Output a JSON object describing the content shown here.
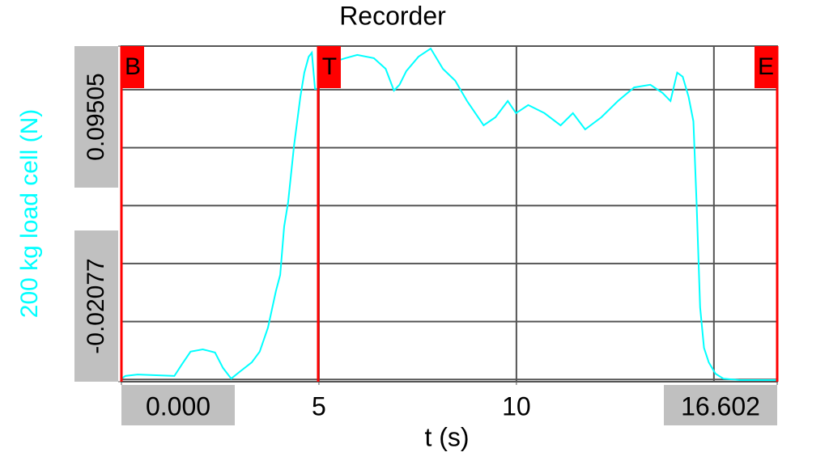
{
  "chart_data": {
    "type": "line",
    "title": "Recorder",
    "xlabel": "t (s)",
    "ylabel": "200 kg load cell (N)",
    "x": [
      0,
      0.1,
      0.41,
      1.34,
      1.54,
      1.75,
      2.06,
      2.37,
      2.57,
      2.78,
      2.99,
      3.3,
      3.5,
      3.71,
      3.91,
      4.02,
      4.12,
      4.22,
      4.37,
      4.53,
      4.63,
      4.74,
      4.82,
      4.9,
      4.98,
      5.07,
      5.25,
      5.46,
      5.67,
      5.97,
      6.39,
      6.69,
      6.9,
      7.04,
      7.21,
      7.52,
      7.83,
      8.14,
      8.45,
      8.75,
      9.17,
      9.47,
      9.78,
      9.99,
      10.3,
      10.71,
      11.12,
      11.43,
      11.74,
      12.15,
      12.57,
      12.98,
      13.39,
      13.7,
      13.9,
      14.07,
      14.21,
      14.36,
      14.48,
      14.56,
      14.65,
      14.75,
      14.87,
      15.04,
      15.24,
      15.65,
      16.6
    ],
    "values": [
      -0.0197,
      -0.0188,
      -0.0183,
      -0.0188,
      -0.0146,
      -0.0104,
      -0.0096,
      -0.0107,
      -0.016,
      -0.0197,
      -0.0174,
      -0.0141,
      -0.0104,
      -0.0021,
      0.0105,
      0.0161,
      0.0328,
      0.0412,
      0.0607,
      0.0775,
      0.0859,
      0.0914,
      0.0928,
      0.0803,
      0.0803,
      0.0872,
      0.0872,
      0.09,
      0.0909,
      0.092,
      0.0909,
      0.0872,
      0.0797,
      0.0817,
      0.0864,
      0.0914,
      0.0942,
      0.0872,
      0.0831,
      0.0761,
      0.0677,
      0.0705,
      0.0761,
      0.0719,
      0.0747,
      0.0719,
      0.0677,
      0.0719,
      0.0663,
      0.0705,
      0.0761,
      0.0808,
      0.0817,
      0.0789,
      0.0761,
      0.0859,
      0.0845,
      0.0775,
      0.0691,
      0.0412,
      0.0049,
      -0.0091,
      -0.0141,
      -0.018,
      -0.0197,
      -0.0202,
      -0.0202
    ],
    "color": "#00ffff",
    "xlim": [
      0,
      16.602
    ],
    "xticks": [
      {
        "value": 0,
        "label": "0.000"
      },
      5,
      10,
      {
        "value": 16.602,
        "label": "16.602"
      }
    ],
    "xgrid": [
      5,
      10,
      15
    ],
    "ylim": [
      -0.02077,
      0.09505
    ],
    "yticks": [
      {
        "value": -0.02077,
        "label": "-0.02077"
      },
      {
        "value": 0.09505,
        "label": "0.09505"
      }
    ],
    "ygrid": [
      -0.02,
      0,
      0.02,
      0.04,
      0.06,
      0.08
    ],
    "grid": true,
    "markers": [
      {
        "label": "B",
        "t": 0
      },
      {
        "label": "T",
        "t": 4.98
      },
      {
        "label": "E",
        "t": 16.602
      }
    ],
    "marker_color": "#ff0000"
  }
}
